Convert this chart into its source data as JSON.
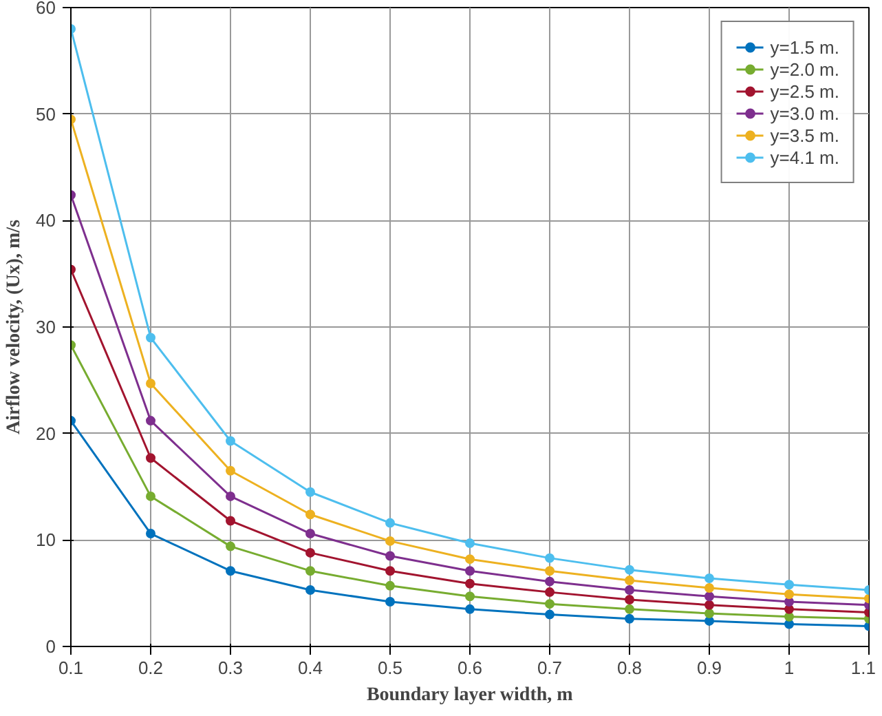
{
  "chart_data": {
    "type": "line",
    "xlabel": "Boundary layer width, m",
    "ylabel": "Airflow velocity, (Ux), m/s",
    "x": [
      0.1,
      0.2,
      0.3,
      0.4,
      0.5,
      0.6,
      0.7,
      0.8,
      0.9,
      1.0,
      1.1
    ],
    "xlim": [
      0.1,
      1.1
    ],
    "xticks": [
      0.1,
      0.2,
      0.3,
      0.4,
      0.5,
      0.6,
      0.7,
      0.8,
      0.9,
      1,
      1.1
    ],
    "ylim": [
      0,
      60
    ],
    "yticks": [
      0,
      10,
      20,
      30,
      40,
      50,
      60
    ],
    "grid": true,
    "legend": "top right",
    "marker": "circle",
    "line_style": "solid",
    "series": [
      {
        "name": "y=1.5 m.",
        "color": "#0072bd",
        "values": [
          21.2,
          10.6,
          7.1,
          5.3,
          4.2,
          3.5,
          3.0,
          2.6,
          2.4,
          2.1,
          1.9
        ]
      },
      {
        "name": "y=2.0 m.",
        "color": "#77ac30",
        "values": [
          28.3,
          14.1,
          9.4,
          7.1,
          5.7,
          4.7,
          4.0,
          3.5,
          3.1,
          2.8,
          2.6
        ]
      },
      {
        "name": "y=2.5 m.",
        "color": "#a2142f",
        "values": [
          35.4,
          17.7,
          11.8,
          8.8,
          7.1,
          5.9,
          5.1,
          4.4,
          3.9,
          3.5,
          3.2
        ]
      },
      {
        "name": "y=3.0 m.",
        "color": "#7e2f8e",
        "values": [
          42.4,
          21.2,
          14.1,
          10.6,
          8.5,
          7.1,
          6.1,
          5.3,
          4.7,
          4.2,
          3.9
        ]
      },
      {
        "name": "y=3.5 m.",
        "color": "#edb120",
        "values": [
          49.5,
          24.7,
          16.5,
          12.4,
          9.9,
          8.2,
          7.1,
          6.2,
          5.5,
          4.9,
          4.5
        ]
      },
      {
        "name": "y=4.1 m.",
        "color": "#4dbeee",
        "values": [
          58.0,
          29.0,
          19.3,
          14.5,
          11.6,
          9.7,
          8.3,
          7.2,
          6.4,
          5.8,
          5.3
        ]
      }
    ]
  }
}
